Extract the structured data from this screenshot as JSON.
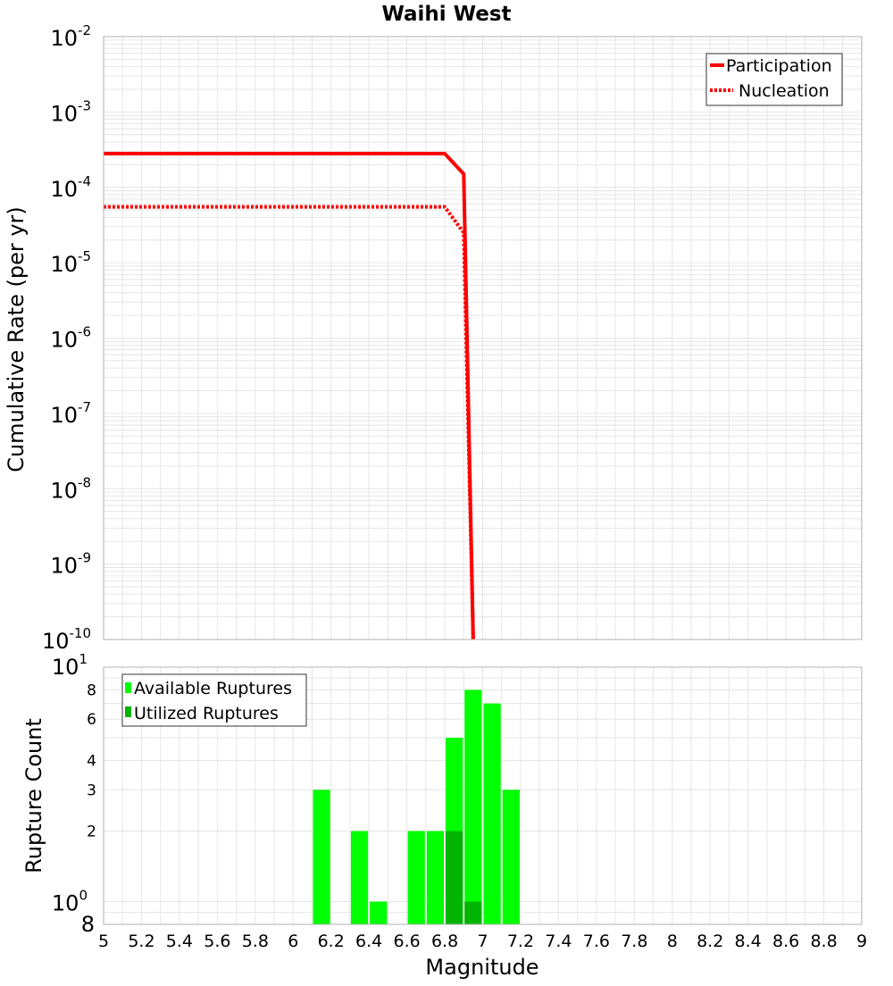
{
  "title": "Waihi West",
  "colors": {
    "line": "#ff0000",
    "available": "#00ff00",
    "utilized": "#00b400",
    "grid": "#e6e6e6",
    "frame": "#b0b0b0"
  },
  "chart_data": [
    {
      "type": "line",
      "ylabel": "Cumulative Rate (per yr)",
      "yscale": "log",
      "ylim": [
        1e-10,
        0.01
      ],
      "xlim": [
        5,
        9
      ],
      "y_ticks": [
        {
          "base": "10",
          "exp": "-10"
        },
        {
          "base": "10",
          "exp": "-9"
        },
        {
          "base": "10",
          "exp": "-8"
        },
        {
          "base": "10",
          "exp": "-7"
        },
        {
          "base": "10",
          "exp": "-6"
        },
        {
          "base": "10",
          "exp": "-5"
        },
        {
          "base": "10",
          "exp": "-4"
        },
        {
          "base": "10",
          "exp": "-3"
        },
        {
          "base": "10",
          "exp": "-2"
        }
      ],
      "grid": true,
      "legend": "top-right",
      "series": [
        {
          "name": "Participation",
          "style": "solid",
          "x": [
            5.0,
            6.8,
            6.9,
            6.95
          ],
          "y": [
            0.00028,
            0.00028,
            0.00015,
            1e-10
          ]
        },
        {
          "name": "Nucleation",
          "style": "dotted",
          "x": [
            5.0,
            6.8,
            6.9,
            6.95
          ],
          "y": [
            5.5e-05,
            5.5e-05,
            2.5e-05,
            1e-10
          ]
        }
      ]
    },
    {
      "type": "bar",
      "xlabel": "Magnitude",
      "ylabel": "Rupture Count",
      "yscale": "log",
      "ylim": [
        0.8,
        10
      ],
      "xlim": [
        5,
        9
      ],
      "x_tick_labels": [
        "5",
        "5.2",
        "5.4",
        "5.6",
        "5.8",
        "6",
        "6.2",
        "6.4",
        "6.6",
        "6.8",
        "7",
        "7.2",
        "7.4",
        "7.6",
        "7.8",
        "8",
        "8.2",
        "8.4",
        "8.6",
        "8.8",
        "9"
      ],
      "y_tick_labels": [
        "2",
        "3",
        "4",
        "6",
        "8"
      ],
      "y_top_label": {
        "base": "10",
        "exp": "1"
      },
      "y_bottom_label": {
        "base": "10",
        "exp": "0"
      },
      "y_bottom_extra": "8",
      "grid": true,
      "legend": "top-left",
      "series": [
        {
          "name": "Available Ruptures",
          "x": [
            6.15,
            6.35,
            6.45,
            6.65,
            6.75,
            6.85,
            6.95,
            7.05,
            7.15
          ],
          "values": [
            3,
            2,
            1,
            2,
            2,
            5,
            8,
            7,
            3
          ]
        },
        {
          "name": "Utilized Ruptures",
          "x": [
            6.85,
            6.95
          ],
          "values": [
            2,
            1
          ]
        }
      ]
    }
  ]
}
